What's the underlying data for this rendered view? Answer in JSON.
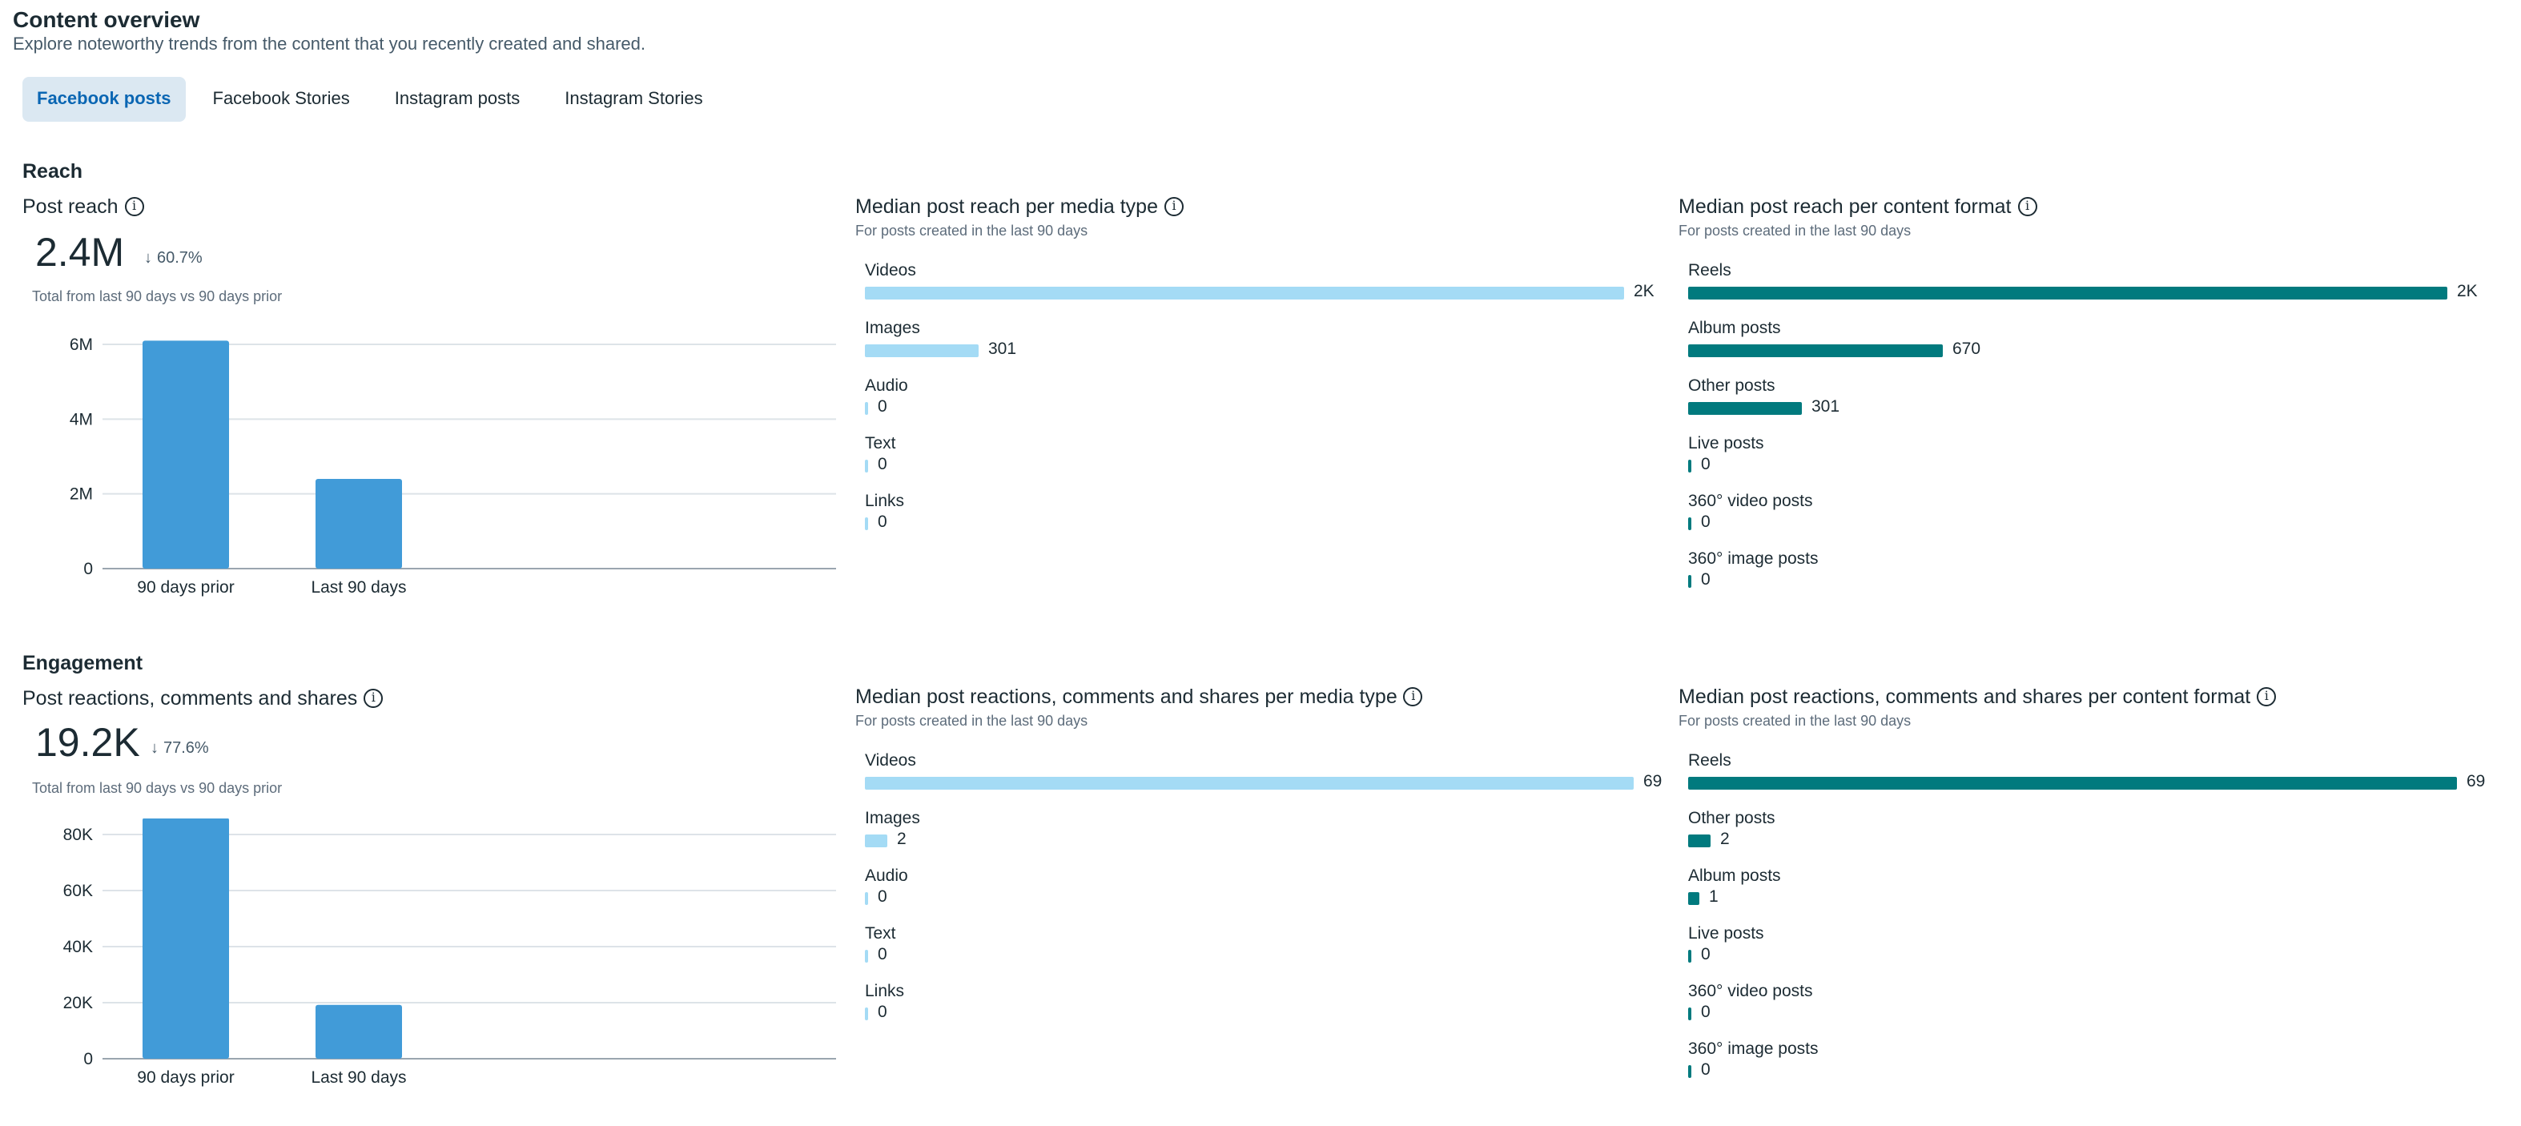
{
  "header": {
    "title": "Content overview",
    "subtitle": "Explore noteworthy trends from the content that you recently created and shared."
  },
  "tabs": [
    {
      "label": "Facebook posts",
      "active": true
    },
    {
      "label": "Facebook Stories",
      "active": false
    },
    {
      "label": "Instagram posts",
      "active": false
    },
    {
      "label": "Instagram Stories",
      "active": false
    }
  ],
  "colors": {
    "media_bar": "#a4dbf5",
    "format_bar": "#017a7e",
    "column_bar": "#419bd8"
  },
  "reach": {
    "section_title": "Reach",
    "summary": {
      "title": "Post reach",
      "value": "2.4M",
      "delta": "60.7%",
      "delta_direction": "down",
      "note": "Total from last 90 days vs 90 days prior",
      "chart_data": {
        "type": "bar",
        "categories": [
          "90 days prior",
          "Last 90 days"
        ],
        "values": [
          6100000,
          2400000
        ],
        "yticks": [
          0,
          2000000,
          4000000,
          6000000
        ],
        "ytick_labels": [
          "0",
          "2M",
          "4M",
          "6M"
        ],
        "ylim": [
          0,
          6000000
        ]
      }
    },
    "media_type": {
      "title": "Median post reach per media type",
      "note": "For posts created in the last 90 days",
      "chart_data": {
        "type": "bar",
        "orientation": "horizontal",
        "categories": [
          "Videos",
          "Images",
          "Audio",
          "Text",
          "Links"
        ],
        "values": [
          2000,
          301,
          0,
          0,
          0
        ],
        "value_labels": [
          "2K",
          "301",
          "0",
          "0",
          "0"
        ]
      }
    },
    "content_format": {
      "title": "Median post reach per content format",
      "note": "For posts created in the last 90 days",
      "chart_data": {
        "type": "bar",
        "orientation": "horizontal",
        "categories": [
          "Reels",
          "Album posts",
          "Other posts",
          "Live posts",
          "360° video posts",
          "360° image posts"
        ],
        "values": [
          2000,
          670,
          301,
          0,
          0,
          0
        ],
        "value_labels": [
          "2K",
          "670",
          "301",
          "0",
          "0",
          "0"
        ]
      }
    }
  },
  "engagement": {
    "section_title": "Engagement",
    "summary": {
      "title": "Post reactions, comments and shares",
      "value": "19.2K",
      "delta": "77.6%",
      "delta_direction": "down",
      "note": "Total from last 90 days vs 90 days prior",
      "chart_data": {
        "type": "bar",
        "categories": [
          "90 days prior",
          "Last 90 days"
        ],
        "values": [
          86000,
          19200
        ],
        "yticks": [
          0,
          20000,
          40000,
          60000,
          80000
        ],
        "ytick_labels": [
          "0",
          "20K",
          "40K",
          "60K",
          "80K"
        ],
        "ylim": [
          0,
          80000
        ]
      }
    },
    "media_type": {
      "title": "Median post reactions, comments and shares per media type",
      "note": "For posts created in the last 90 days",
      "chart_data": {
        "type": "bar",
        "orientation": "horizontal",
        "categories": [
          "Videos",
          "Images",
          "Audio",
          "Text",
          "Links"
        ],
        "values": [
          69,
          2,
          0,
          0,
          0
        ],
        "value_labels": [
          "69",
          "2",
          "0",
          "0",
          "0"
        ]
      }
    },
    "content_format": {
      "title": "Median post reactions, comments and shares per content format",
      "note": "For posts created in the last 90 days",
      "chart_data": {
        "type": "bar",
        "orientation": "horizontal",
        "categories": [
          "Reels",
          "Other posts",
          "Album posts",
          "Live posts",
          "360° video posts",
          "360° image posts"
        ],
        "values": [
          69,
          2,
          1,
          0,
          0,
          0
        ],
        "value_labels": [
          "69",
          "2",
          "1",
          "0",
          "0",
          "0"
        ]
      }
    }
  }
}
